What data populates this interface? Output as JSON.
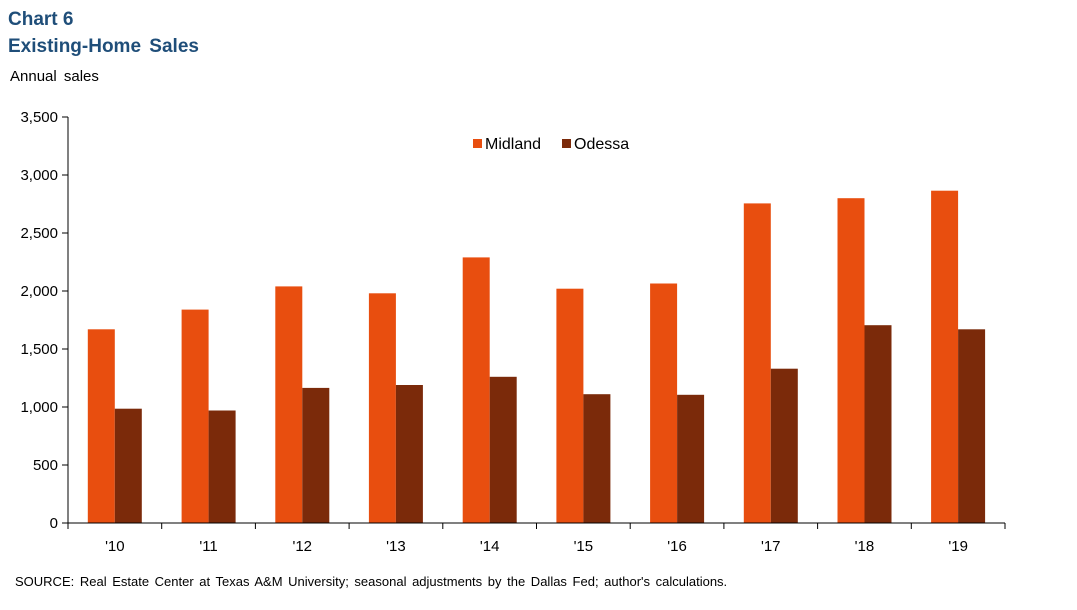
{
  "header": {
    "chart_label": "Chart 6",
    "title": "Existing-Home  Sales"
  },
  "footer": {
    "source": "SOURCE:  Real Estate Center at Texas A&M  University;  seasonal adjustments  by the Dallas Fed; author's calculations."
  },
  "chart_data": {
    "type": "bar",
    "title": "Existing-Home  Sales",
    "ylabel": "Annual  sales",
    "xlabel": "",
    "categories": [
      "'10",
      "'11",
      "'12",
      "'13",
      "'14",
      "'15",
      "'16",
      "'17",
      "'18",
      "'19"
    ],
    "series": [
      {
        "name": "Midland",
        "color": "#e84e0f",
        "values": [
          1670,
          1840,
          2040,
          1980,
          2290,
          2020,
          2065,
          2755,
          2800,
          2865
        ]
      },
      {
        "name": "Odessa",
        "color": "#7b2a0a",
        "values": [
          985,
          970,
          1165,
          1190,
          1260,
          1110,
          1105,
          1330,
          1705,
          1670
        ]
      }
    ],
    "ylim": [
      0,
      3500
    ],
    "yticks": [
      0,
      500,
      1000,
      1500,
      2000,
      2500,
      3000,
      3500
    ],
    "ytick_labels": [
      "0",
      "500",
      "1,000",
      "1,500",
      "2,000",
      "2,500",
      "3,000",
      "3,500"
    ],
    "grid": false,
    "legend": "top-center"
  }
}
